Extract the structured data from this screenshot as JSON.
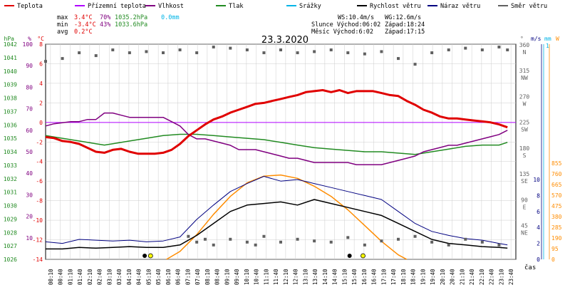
{
  "chart_data": {
    "type": "line",
    "title": "23.3.2020",
    "xlabel": "čas",
    "legend": [
      {
        "label": "Teplota",
        "color": "#e00000"
      },
      {
        "label": "Přízemní teplota",
        "color": "#b000ff"
      },
      {
        "label": "Vlhkost",
        "color": "#800080"
      },
      {
        "label": "Tlak",
        "color": "#228b22"
      },
      {
        "label": "Srážky",
        "color": "#00b4e6"
      },
      {
        "label": "Rychlost větru",
        "color": "#000000"
      },
      {
        "label": "Náraz větru",
        "color": "#000080"
      },
      {
        "label": "Směr větru",
        "color": "#606060"
      }
    ],
    "stats": {
      "max": {
        "label": "max",
        "temp": "3.4°C",
        "hum": "70%",
        "press": "1035.2hPa",
        "rain": "0.0mm"
      },
      "min": {
        "label": "min",
        "temp": "-3.4°C",
        "hum": "43%",
        "press": "1033.6hPa"
      },
      "avg": {
        "label": "avg",
        "temp": "0.2°C"
      }
    },
    "info": {
      "ws": "WS:10.4m/s",
      "wg": "WG:12.6m/s",
      "sun": "Slunce Východ:06:02",
      "sunset": "Západ:18:24",
      "moon": "Měsíc  Východ:6:02",
      "moonset": "Západ:17:15"
    },
    "axes": {
      "hpa": {
        "unit": "hPa",
        "ticks": [
          "1042",
          "1041",
          "1040",
          "1039",
          "1038",
          "1037",
          "1036",
          "1035",
          "1034",
          "1033",
          "1032",
          "1031",
          "1030",
          "1029",
          "1028",
          "1027",
          "1026"
        ]
      },
      "pct": {
        "unit": "%",
        "ticks": [
          "100",
          "90",
          "80",
          "70",
          "60",
          "50",
          "40",
          "30",
          "20",
          "10"
        ]
      },
      "temp": {
        "unit": "°C",
        "ticks": [
          "8",
          "6",
          "4",
          "2",
          "0",
          "-2",
          "-4",
          "-6",
          "-8",
          "-10",
          "-12",
          "-14"
        ]
      },
      "dir": {
        "unit": "°",
        "ticks": [
          {
            "deg": "360",
            "card": "N"
          },
          {
            "deg": "315",
            "card": "NW"
          },
          {
            "deg": "270",
            "card": "W"
          },
          {
            "deg": "225",
            "card": "SW"
          },
          {
            "deg": "180",
            "card": "S"
          },
          {
            "deg": "135",
            "card": "SE"
          },
          {
            "deg": "90",
            "card": "E"
          },
          {
            "deg": "45",
            "card": "NE"
          }
        ]
      },
      "wind": {
        "unit": "m/s",
        "ticks": [
          "10",
          "8",
          "6",
          "4",
          "2",
          "0"
        ]
      },
      "rain": {
        "unit": "mm",
        "top": "1"
      },
      "solar": {
        "unit": "W",
        "ticks": [
          "855",
          "760",
          "665",
          "570",
          "475",
          "380",
          "285",
          "190",
          "95",
          "0"
        ]
      }
    },
    "x_ticks": [
      "00:10",
      "00:40",
      "01:10",
      "01:40",
      "02:10",
      "02:40",
      "03:10",
      "03:40",
      "04:10",
      "04:40",
      "05:10",
      "05:40",
      "06:10",
      "06:40",
      "07:10",
      "07:40",
      "08:10",
      "08:40",
      "09:10",
      "09:40",
      "10:10",
      "10:40",
      "11:10",
      "11:40",
      "12:10",
      "12:40",
      "13:10",
      "13:40",
      "14:10",
      "14:40",
      "15:10",
      "15:40",
      "16:10",
      "16:40",
      "17:10",
      "17:40",
      "18:10",
      "18:40",
      "19:10",
      "19:40",
      "20:10",
      "20:40",
      "21:10",
      "21:40",
      "22:10",
      "22:40",
      "23:10",
      "23:40"
    ],
    "series": {
      "temperature": [
        [
          0,
          -1.5
        ],
        [
          0.5,
          -1.6
        ],
        [
          1,
          -1.9
        ],
        [
          1.5,
          -2.0
        ],
        [
          2,
          -2.2
        ],
        [
          2.5,
          -2.6
        ],
        [
          3,
          -3.0
        ],
        [
          3.5,
          -3.1
        ],
        [
          4,
          -2.8
        ],
        [
          4.5,
          -2.7
        ],
        [
          5,
          -3.0
        ],
        [
          5.5,
          -3.2
        ],
        [
          6,
          -3.2
        ],
        [
          6.5,
          -3.2
        ],
        [
          7,
          -3.1
        ],
        [
          7.5,
          -2.8
        ],
        [
          8,
          -2.2
        ],
        [
          8.5,
          -1.4
        ],
        [
          9,
          -0.8
        ],
        [
          9.5,
          -0.2
        ],
        [
          10,
          0.3
        ],
        [
          10.5,
          0.6
        ],
        [
          11,
          1.0
        ],
        [
          11.5,
          1.3
        ],
        [
          12,
          1.6
        ],
        [
          12.5,
          1.9
        ],
        [
          13,
          2.0
        ],
        [
          13.5,
          2.2
        ],
        [
          14,
          2.4
        ],
        [
          14.5,
          2.6
        ],
        [
          15,
          2.8
        ],
        [
          15.5,
          3.1
        ],
        [
          16,
          3.2
        ],
        [
          16.5,
          3.3
        ],
        [
          17,
          3.1
        ],
        [
          17.5,
          3.3
        ],
        [
          18,
          3.0
        ],
        [
          18.5,
          3.2
        ],
        [
          19,
          3.2
        ],
        [
          19.5,
          3.2
        ],
        [
          20,
          3.0
        ],
        [
          20.5,
          2.8
        ],
        [
          21,
          2.7
        ],
        [
          21.5,
          2.2
        ],
        [
          22,
          1.8
        ],
        [
          22.5,
          1.3
        ],
        [
          23,
          1.0
        ],
        [
          23.5,
          0.6
        ],
        [
          24,
          0.4
        ],
        [
          24.5,
          0.4
        ],
        [
          25,
          0.3
        ],
        [
          25.5,
          0.2
        ],
        [
          26,
          0.1
        ],
        [
          26.5,
          0.0
        ],
        [
          27,
          -0.2
        ],
        [
          27.5,
          -0.5
        ]
      ],
      "humidity": [
        [
          0,
          62
        ],
        [
          0.5,
          63
        ],
        [
          1,
          63.5
        ],
        [
          1.5,
          64
        ],
        [
          2,
          64
        ],
        [
          2.5,
          65
        ],
        [
          3,
          65
        ],
        [
          3.5,
          68
        ],
        [
          4,
          68
        ],
        [
          4.5,
          67
        ],
        [
          5,
          66
        ],
        [
          5.5,
          66
        ],
        [
          6,
          66
        ],
        [
          6.5,
          66
        ],
        [
          7,
          66
        ],
        [
          7.5,
          64
        ],
        [
          8,
          62
        ],
        [
          8.5,
          58
        ],
        [
          9,
          56
        ],
        [
          9.5,
          56
        ],
        [
          10,
          55
        ],
        [
          10.5,
          54
        ],
        [
          11,
          53
        ],
        [
          11.5,
          51
        ],
        [
          12,
          51
        ],
        [
          12.5,
          51
        ],
        [
          13,
          50
        ],
        [
          13.5,
          49
        ],
        [
          14,
          48
        ],
        [
          14.5,
          47
        ],
        [
          15,
          47
        ],
        [
          15.5,
          46
        ],
        [
          16,
          45
        ],
        [
          16.5,
          45
        ],
        [
          17,
          45
        ],
        [
          17.5,
          45
        ],
        [
          18,
          45
        ],
        [
          18.5,
          44
        ],
        [
          19,
          44
        ],
        [
          19.5,
          44
        ],
        [
          20,
          44
        ],
        [
          20.5,
          45
        ],
        [
          21,
          46
        ],
        [
          21.5,
          47
        ],
        [
          22,
          48
        ],
        [
          22.5,
          50
        ],
        [
          23,
          51
        ],
        [
          23.5,
          52
        ],
        [
          24,
          53
        ],
        [
          24.5,
          53
        ],
        [
          25,
          54
        ],
        [
          25.5,
          55
        ],
        [
          26,
          56
        ],
        [
          26.5,
          57
        ],
        [
          27,
          58
        ],
        [
          27.5,
          60
        ]
      ],
      "pressure": [
        [
          0,
          1035.2
        ],
        [
          1,
          1035.0
        ],
        [
          2,
          1034.8
        ],
        [
          3,
          1034.6
        ],
        [
          3.5,
          1034.5
        ],
        [
          4,
          1034.6
        ],
        [
          5,
          1034.8
        ],
        [
          6,
          1035.0
        ],
        [
          7,
          1035.2
        ],
        [
          8,
          1035.3
        ],
        [
          9,
          1035.3
        ],
        [
          10,
          1035.2
        ],
        [
          11,
          1035.1
        ],
        [
          12,
          1035.0
        ],
        [
          13,
          1034.9
        ],
        [
          14,
          1034.7
        ],
        [
          15,
          1034.5
        ],
        [
          16,
          1034.3
        ],
        [
          17,
          1034.2
        ],
        [
          18,
          1034.1
        ],
        [
          19,
          1034.0
        ],
        [
          20,
          1034.0
        ],
        [
          21,
          1033.9
        ],
        [
          22,
          1033.8
        ],
        [
          22.5,
          1033.9
        ],
        [
          23,
          1034.0
        ],
        [
          24,
          1034.2
        ],
        [
          25,
          1034.4
        ],
        [
          26,
          1034.5
        ],
        [
          27,
          1034.5
        ],
        [
          27.5,
          1034.7
        ]
      ],
      "wind_speed": [
        [
          0,
          1.3
        ],
        [
          1,
          1.3
        ],
        [
          2,
          1.5
        ],
        [
          3,
          1.4
        ],
        [
          4,
          1.5
        ],
        [
          5,
          1.6
        ],
        [
          6,
          1.5
        ],
        [
          7,
          1.5
        ],
        [
          8,
          1.8
        ],
        [
          9,
          3.0
        ],
        [
          10,
          4.5
        ],
        [
          11,
          6.0
        ],
        [
          12,
          6.8
        ],
        [
          13,
          7.0
        ],
        [
          14,
          7.2
        ],
        [
          15,
          6.8
        ],
        [
          16,
          7.5
        ],
        [
          17,
          7.0
        ],
        [
          18,
          6.5
        ],
        [
          19,
          6.0
        ],
        [
          20,
          5.5
        ],
        [
          21,
          4.5
        ],
        [
          22,
          3.5
        ],
        [
          23,
          2.5
        ],
        [
          24,
          2.0
        ],
        [
          25,
          1.8
        ],
        [
          26,
          1.6
        ],
        [
          27,
          1.5
        ],
        [
          27.5,
          1.4
        ]
      ],
      "wind_gust": [
        [
          0,
          2.2
        ],
        [
          1,
          2.0
        ],
        [
          2,
          2.5
        ],
        [
          3,
          2.4
        ],
        [
          4,
          2.3
        ],
        [
          5,
          2.4
        ],
        [
          6,
          2.2
        ],
        [
          7,
          2.3
        ],
        [
          8,
          2.8
        ],
        [
          9,
          5.0
        ],
        [
          10,
          6.8
        ],
        [
          11,
          8.5
        ],
        [
          12,
          9.5
        ],
        [
          13,
          10.4
        ],
        [
          14,
          9.8
        ],
        [
          15,
          10.0
        ],
        [
          16,
          9.5
        ],
        [
          17,
          9.0
        ],
        [
          18,
          8.5
        ],
        [
          19,
          8.0
        ],
        [
          20,
          7.5
        ],
        [
          21,
          6.0
        ],
        [
          22,
          4.5
        ],
        [
          23,
          3.5
        ],
        [
          24,
          3.0
        ],
        [
          25,
          2.6
        ],
        [
          26,
          2.4
        ],
        [
          27,
          2.0
        ],
        [
          27.5,
          1.8
        ]
      ],
      "solar": [
        [
          7.2,
          0
        ],
        [
          8,
          70
        ],
        [
          9,
          220
        ],
        [
          10,
          400
        ],
        [
          11,
          560
        ],
        [
          12,
          680
        ],
        [
          13,
          740
        ],
        [
          14,
          750
        ],
        [
          15,
          720
        ],
        [
          16,
          650
        ],
        [
          17,
          560
        ],
        [
          18,
          440
        ],
        [
          19,
          300
        ],
        [
          20,
          160
        ],
        [
          21,
          40
        ],
        [
          21.5,
          0
        ]
      ],
      "wind_dir": [
        [
          0,
          335
        ],
        [
          1,
          340
        ],
        [
          2,
          350
        ],
        [
          3,
          345
        ],
        [
          4,
          355
        ],
        [
          5,
          350
        ],
        [
          6,
          352
        ],
        [
          7,
          350
        ],
        [
          8,
          355
        ],
        [
          9,
          350
        ],
        [
          10,
          360
        ],
        [
          11,
          358
        ],
        [
          12,
          355
        ],
        [
          13,
          350
        ],
        [
          14,
          355
        ],
        [
          15,
          350
        ],
        [
          16,
          352
        ],
        [
          17,
          355
        ],
        [
          18,
          350
        ],
        [
          19,
          348
        ],
        [
          20,
          352
        ],
        [
          21,
          340
        ],
        [
          22,
          330
        ],
        [
          23,
          350
        ],
        [
          24,
          355
        ],
        [
          25,
          358
        ],
        [
          26,
          355
        ],
        [
          27,
          360
        ],
        [
          27.5,
          355
        ]
      ],
      "wind_dir_low": [
        [
          8.5,
          30
        ],
        [
          9,
          20
        ],
        [
          9.5,
          25
        ],
        [
          10,
          15
        ],
        [
          11,
          25
        ],
        [
          12,
          20
        ],
        [
          12.5,
          15
        ],
        [
          13,
          30
        ],
        [
          14,
          20
        ],
        [
          15,
          25
        ],
        [
          16,
          22
        ],
        [
          17,
          20
        ],
        [
          18,
          28
        ],
        [
          19,
          15
        ],
        [
          20,
          22
        ],
        [
          21,
          25
        ],
        [
          22,
          30
        ],
        [
          23,
          20
        ],
        [
          24,
          15
        ],
        [
          25,
          25
        ],
        [
          26,
          20
        ],
        [
          27,
          15
        ]
      ]
    }
  }
}
